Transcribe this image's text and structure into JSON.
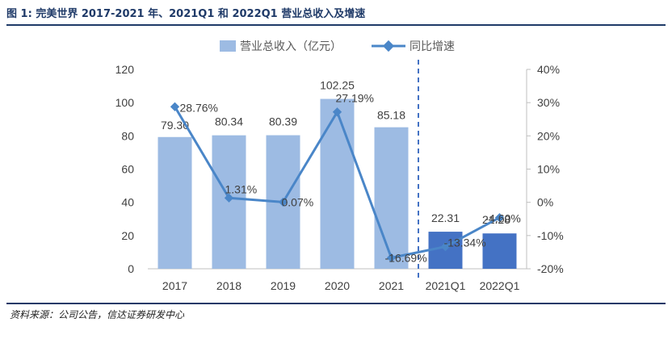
{
  "figure_label": "图 1:",
  "figure_title": "完美世界 2017-2021 年、2021Q1 和 2022Q1 营业总收入及增速",
  "source": "资料来源：公司公告，信达证券研发中心",
  "colors": {
    "bar_annual": "#9dbbe3",
    "bar_quarter": "#4472c4",
    "line": "#4a86c8",
    "divider": "#4472c4",
    "title": "#1f3a68"
  },
  "chart_data": {
    "type": "bar",
    "categories": [
      "2017",
      "2018",
      "2019",
      "2020",
      "2021",
      "2021Q1",
      "2022Q1"
    ],
    "series": [
      {
        "name": "营业总收入（亿元）",
        "kind": "bar",
        "axis": "left",
        "values": [
          79.3,
          80.34,
          80.39,
          102.25,
          85.18,
          22.31,
          21.28
        ],
        "labels": [
          "79.30",
          "80.34",
          "80.39",
          "102.25",
          "85.18",
          "22.31",
          "21.28"
        ]
      },
      {
        "name": "同比增速",
        "kind": "line",
        "axis": "right",
        "values": [
          28.76,
          1.31,
          0.07,
          27.19,
          -16.69,
          -13.34,
          -4.6
        ],
        "labels": [
          "28.76%",
          "1.31%",
          "0.07%",
          "27.19%",
          "-16.69%",
          "-13.34%",
          "-4.60%"
        ]
      }
    ],
    "ylim_left": [
      0,
      120
    ],
    "yticks_left": [
      "0",
      "20",
      "40",
      "60",
      "80",
      "100",
      "120"
    ],
    "ylim_right": [
      -20,
      40
    ],
    "yticks_right": [
      "-20%",
      "-10%",
      "0%",
      "10%",
      "20%",
      "30%",
      "40%"
    ],
    "divider_between": [
      "2021",
      "2021Q1"
    ],
    "legend_position": "top-center"
  }
}
